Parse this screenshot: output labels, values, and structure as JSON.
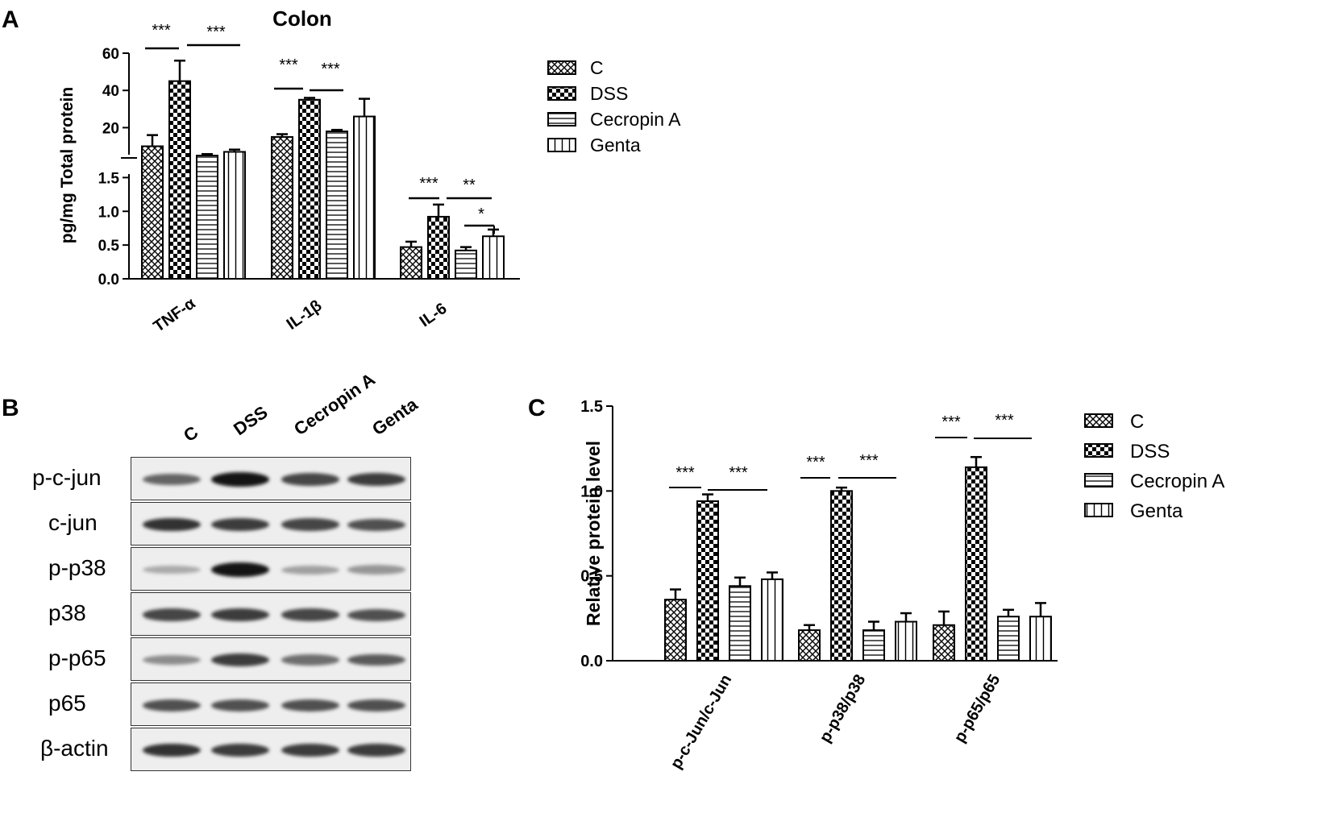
{
  "panels": {
    "a": "A",
    "b": "B",
    "c": "C"
  },
  "chartA": {
    "type": "bar",
    "title": "Colon",
    "ylabel": "pg/mg Total protein",
    "categories": [
      "TNF-α",
      "IL-1β",
      "IL-6"
    ],
    "series": [
      {
        "name": "C",
        "values": [
          10,
          15,
          0.47
        ],
        "errors": [
          6,
          1.5,
          0.08
        ]
      },
      {
        "name": "DSS",
        "values": [
          45,
          35,
          0.92
        ],
        "errors": [
          11,
          1.0,
          0.18
        ]
      },
      {
        "name": "Cecropin A",
        "values": [
          5,
          18,
          0.42
        ],
        "errors": [
          0.8,
          0.8,
          0.05
        ]
      },
      {
        "name": "Genta",
        "values": [
          7,
          26,
          0.63
        ],
        "errors": [
          1.2,
          9.5,
          0.1
        ]
      }
    ],
    "axis_upper": {
      "ticks": [
        "20",
        "40",
        "60"
      ],
      "ylim": [
        2,
        60
      ]
    },
    "axis_lower": {
      "ticks": [
        "0.0",
        "0.5",
        "1.0",
        "1.5"
      ],
      "ylim": [
        0,
        1.6
      ]
    },
    "axis_break": true,
    "significance": [
      {
        "category": "TNF-α",
        "label": "***"
      },
      {
        "category": "TNF-α",
        "label": "***"
      },
      {
        "category": "IL-1β",
        "label": "***"
      },
      {
        "category": "IL-1β",
        "label": "***"
      },
      {
        "category": "IL-6",
        "label": "***"
      },
      {
        "category": "IL-6",
        "label": "**"
      },
      {
        "category": "IL-6",
        "label": "*"
      }
    ],
    "legend_position": "right"
  },
  "blot": {
    "lanes": [
      "C",
      "DSS",
      "Cecropin A",
      "Genta"
    ],
    "rows": [
      {
        "label": "p-c-jun",
        "intensity": [
          0.6,
          1.0,
          0.75,
          0.8
        ]
      },
      {
        "label": "c-jun",
        "intensity": [
          0.85,
          0.8,
          0.75,
          0.7
        ]
      },
      {
        "label": "p-p38",
        "intensity": [
          0.25,
          1.0,
          0.3,
          0.35
        ]
      },
      {
        "label": "p38",
        "intensity": [
          0.75,
          0.8,
          0.75,
          0.7
        ]
      },
      {
        "label": "p-p65",
        "intensity": [
          0.4,
          0.8,
          0.55,
          0.65
        ]
      },
      {
        "label": "p65",
        "intensity": [
          0.7,
          0.7,
          0.7,
          0.7
        ]
      },
      {
        "label": "β-actin",
        "intensity": [
          0.85,
          0.8,
          0.8,
          0.8
        ]
      }
    ]
  },
  "chartC": {
    "type": "bar",
    "ylabel": "Relative protein level",
    "categories": [
      "p-c-Jun/c-Jun",
      "p-p38/p38",
      "p-p65/p65"
    ],
    "ylim": [
      0,
      1.5
    ],
    "ticks": [
      "0.0",
      "0.5",
      "1.0",
      "1.5"
    ],
    "series": [
      {
        "name": "C",
        "values": [
          0.36,
          0.18,
          0.21
        ],
        "errors": [
          0.06,
          0.03,
          0.08
        ]
      },
      {
        "name": "DSS",
        "values": [
          0.94,
          1.0,
          1.14
        ],
        "errors": [
          0.04,
          0.02,
          0.06
        ]
      },
      {
        "name": "Cecropin A",
        "values": [
          0.44,
          0.18,
          0.26
        ],
        "errors": [
          0.05,
          0.05,
          0.04
        ]
      },
      {
        "name": "Genta",
        "values": [
          0.48,
          0.23,
          0.26
        ],
        "errors": [
          0.04,
          0.05,
          0.08
        ]
      }
    ],
    "significance": [
      {
        "category": "p-c-Jun/c-Jun",
        "label": "***"
      },
      {
        "category": "p-c-Jun/c-Jun",
        "label": "***"
      },
      {
        "category": "p-p38/p38",
        "label": "***"
      },
      {
        "category": "p-p38/p38",
        "label": "***"
      },
      {
        "category": "p-p65/p65",
        "label": "***"
      },
      {
        "category": "p-p65/p65",
        "label": "***"
      }
    ],
    "legend_position": "right"
  }
}
